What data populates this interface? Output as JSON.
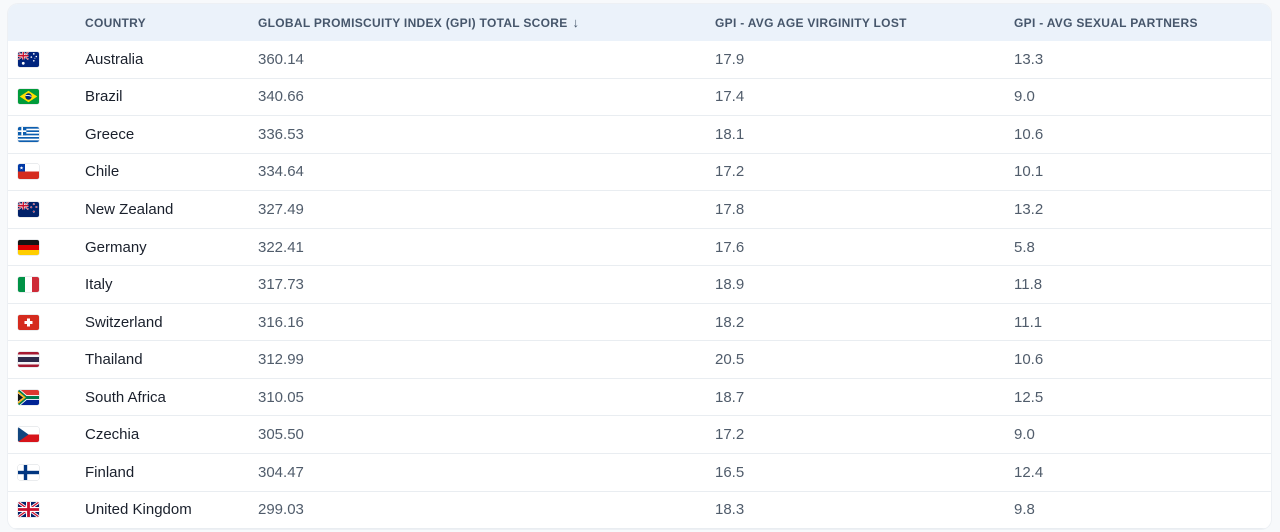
{
  "table": {
    "sort_icon": "↓",
    "columns": [
      {
        "key": "country",
        "label": "COUNTRY",
        "sorted": false
      },
      {
        "key": "score",
        "label": "GLOBAL PROMISCUITY INDEX (GPI) TOTAL SCORE",
        "sorted": true,
        "sort_direction": "descending"
      },
      {
        "key": "age",
        "label": "GPI - AVG AGE VIRGINITY LOST",
        "sorted": false
      },
      {
        "key": "partners",
        "label": "GPI - AVG SEXUAL PARTNERS",
        "sorted": false
      }
    ],
    "rows": [
      {
        "country": "Australia",
        "flag": "au",
        "flag_icon": "australia-flag-icon",
        "score": "360.14",
        "age": "17.9",
        "partners": "13.3"
      },
      {
        "country": "Brazil",
        "flag": "br",
        "flag_icon": "brazil-flag-icon",
        "score": "340.66",
        "age": "17.4",
        "partners": "9.0"
      },
      {
        "country": "Greece",
        "flag": "gr",
        "flag_icon": "greece-flag-icon",
        "score": "336.53",
        "age": "18.1",
        "partners": "10.6"
      },
      {
        "country": "Chile",
        "flag": "cl",
        "flag_icon": "chile-flag-icon",
        "score": "334.64",
        "age": "17.2",
        "partners": "10.1"
      },
      {
        "country": "New Zealand",
        "flag": "nz",
        "flag_icon": "new-zealand-flag-icon",
        "score": "327.49",
        "age": "17.8",
        "partners": "13.2"
      },
      {
        "country": "Germany",
        "flag": "de",
        "flag_icon": "germany-flag-icon",
        "score": "322.41",
        "age": "17.6",
        "partners": "5.8"
      },
      {
        "country": "Italy",
        "flag": "it",
        "flag_icon": "italy-flag-icon",
        "score": "317.73",
        "age": "18.9",
        "partners": "11.8"
      },
      {
        "country": "Switzerland",
        "flag": "ch",
        "flag_icon": "switzerland-flag-icon",
        "score": "316.16",
        "age": "18.2",
        "partners": "11.1"
      },
      {
        "country": "Thailand",
        "flag": "th",
        "flag_icon": "thailand-flag-icon",
        "score": "312.99",
        "age": "20.5",
        "partners": "10.6"
      },
      {
        "country": "South Africa",
        "flag": "za",
        "flag_icon": "south-africa-flag-icon",
        "score": "310.05",
        "age": "18.7",
        "partners": "12.5"
      },
      {
        "country": "Czechia",
        "flag": "cz",
        "flag_icon": "czechia-flag-icon",
        "score": "305.50",
        "age": "17.2",
        "partners": "9.0"
      },
      {
        "country": "Finland",
        "flag": "fi",
        "flag_icon": "finland-flag-icon",
        "score": "304.47",
        "age": "16.5",
        "partners": "12.4"
      },
      {
        "country": "United Kingdom",
        "flag": "gb",
        "flag_icon": "united-kingdom-flag-icon",
        "score": "299.03",
        "age": "18.3",
        "partners": "9.8"
      }
    ]
  },
  "colors": {
    "page_bg": "#f7f9fb",
    "panel_border": "#edf0f4",
    "header_bg": "#ebf2fa",
    "header_text": "#46566b",
    "row_text": "#1a202c",
    "value_text": "#505c6b",
    "divider": "#e9edf1"
  }
}
